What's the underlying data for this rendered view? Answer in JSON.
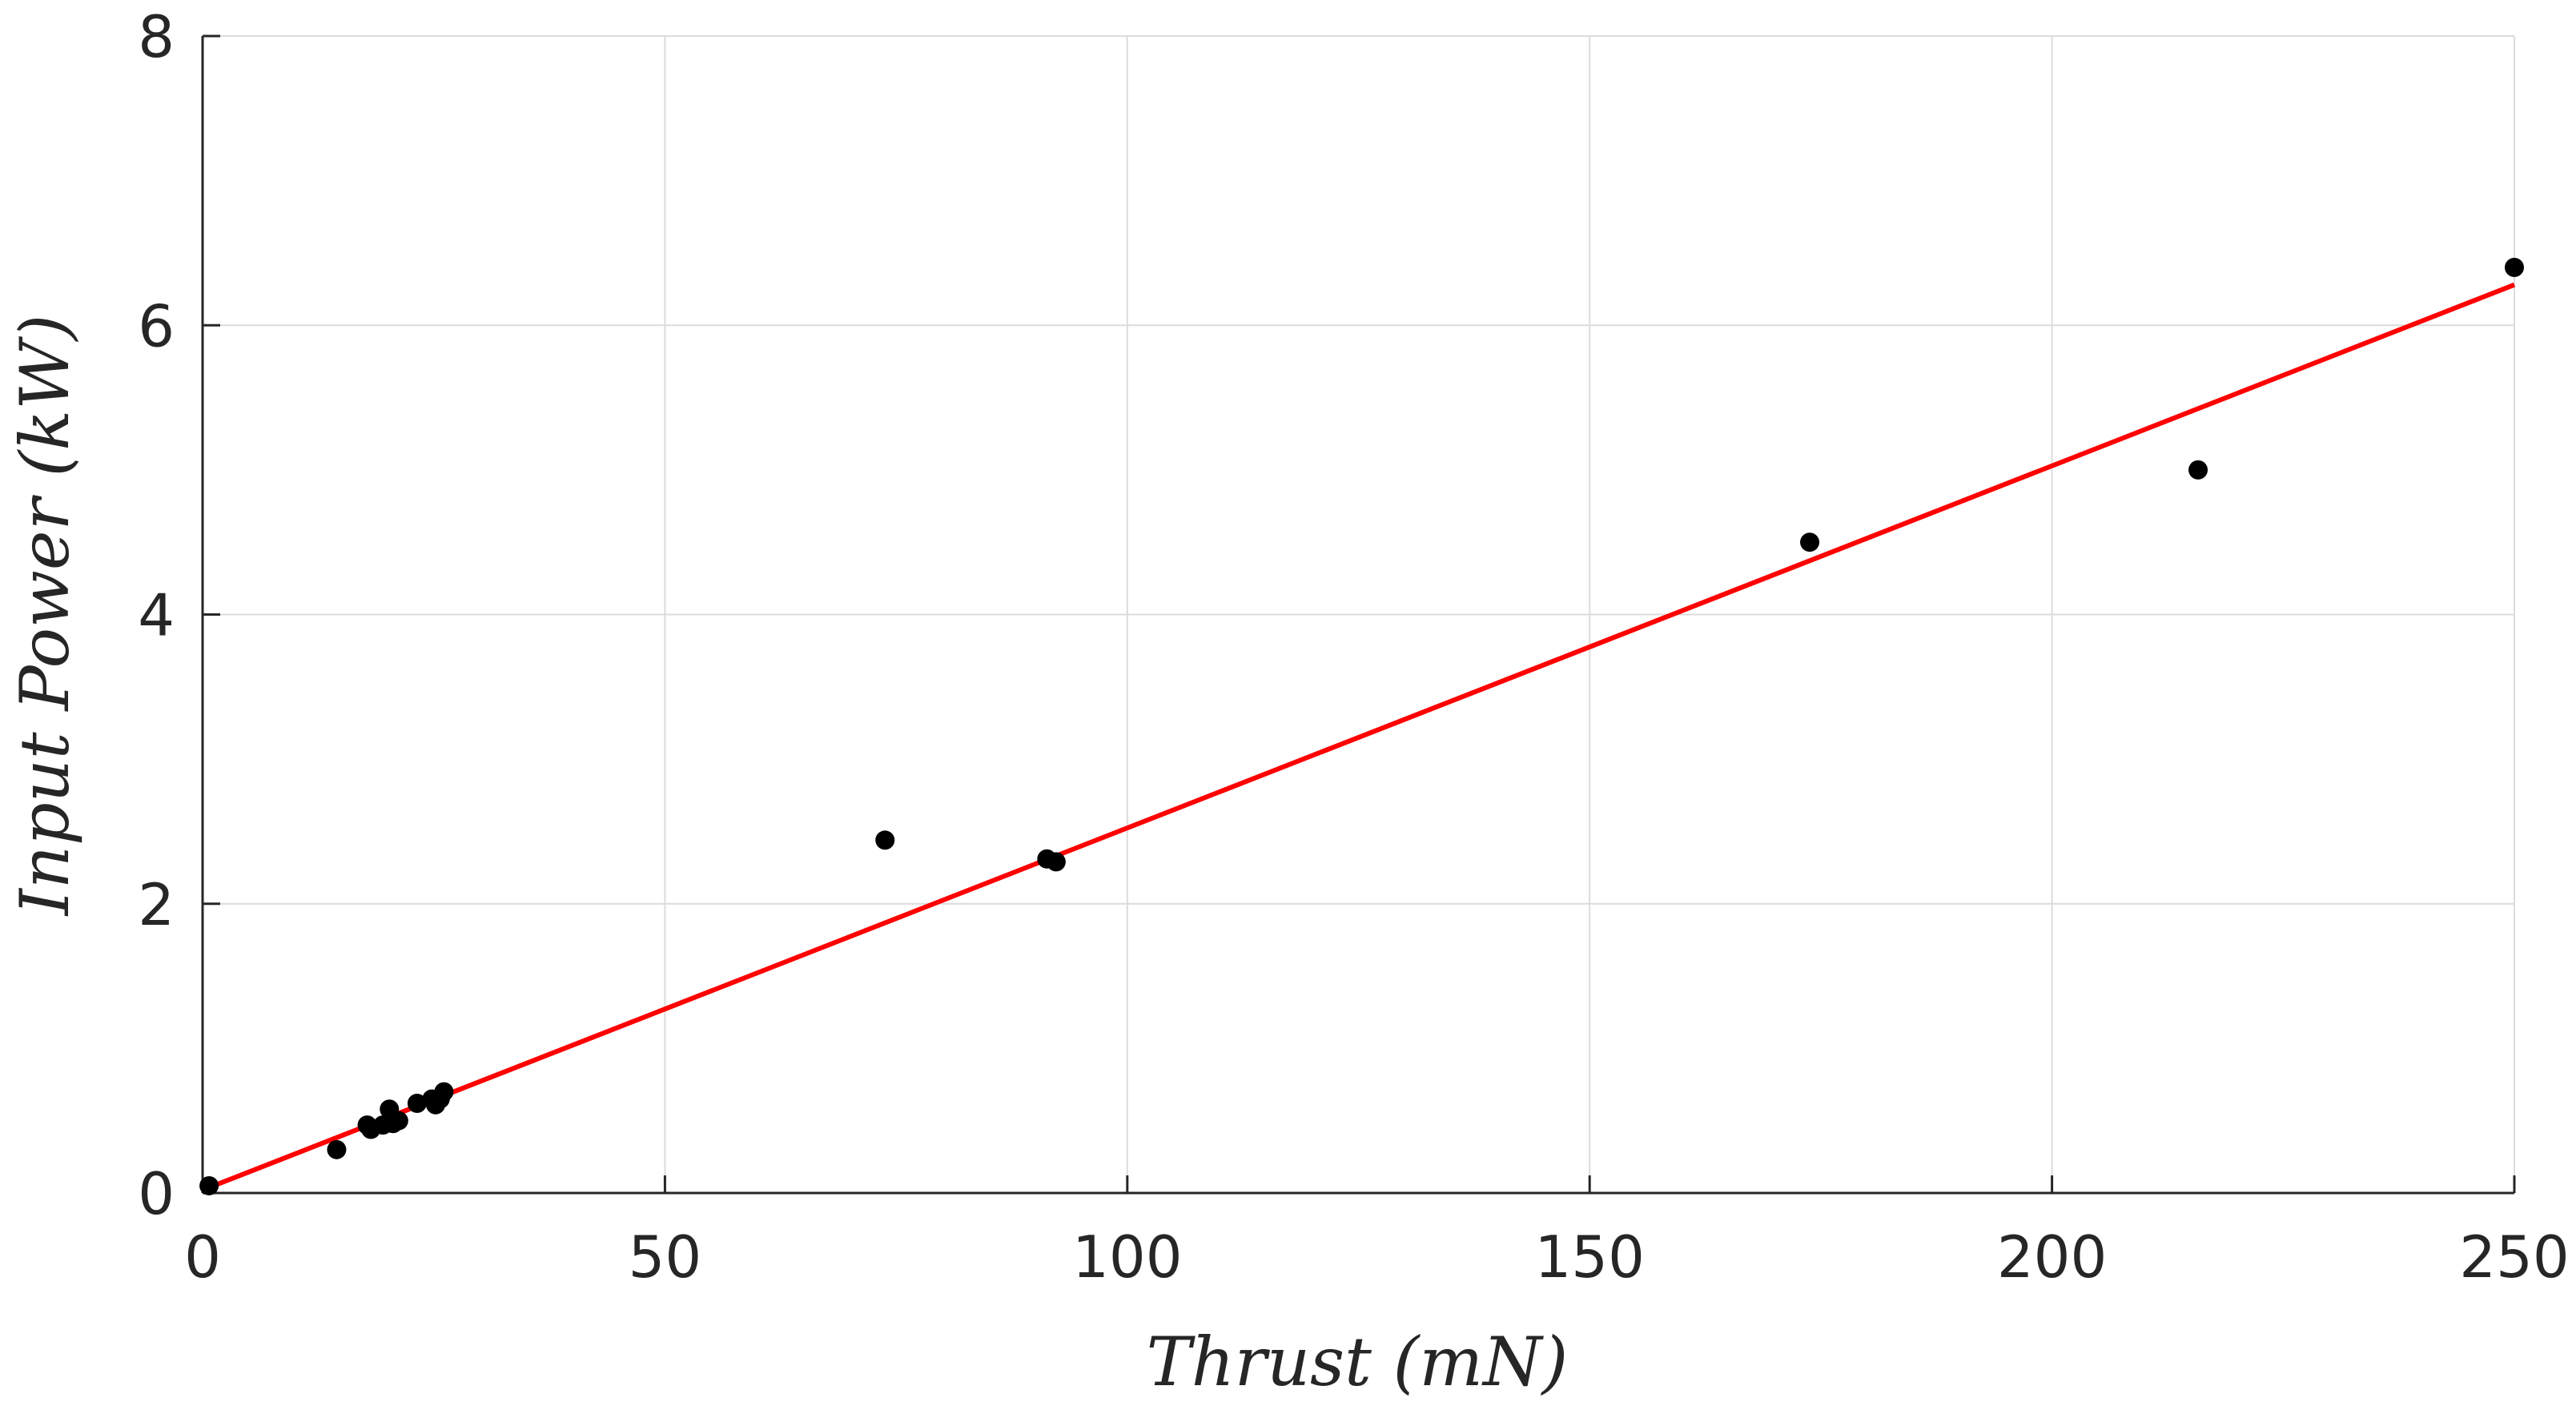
{
  "chart_data": {
    "type": "scatter",
    "title": "",
    "xlabel": "Thrust (mN)",
    "ylabel": "Input Power (kW)",
    "xlim": [
      0,
      250
    ],
    "ylim": [
      0,
      8
    ],
    "xticks": [
      0,
      50,
      100,
      150,
      200,
      250
    ],
    "yticks": [
      0,
      2,
      4,
      6,
      8
    ],
    "grid": true,
    "legend": "none",
    "series": [
      {
        "type": "scatter",
        "color": "#000000",
        "points": [
          [
            0.7,
            0.05
          ],
          [
            14.5,
            0.3
          ],
          [
            17.8,
            0.47
          ],
          [
            18.2,
            0.44
          ],
          [
            19.5,
            0.47
          ],
          [
            20.2,
            0.58
          ],
          [
            20.6,
            0.48
          ],
          [
            21.2,
            0.5
          ],
          [
            23.2,
            0.62
          ],
          [
            24.8,
            0.65
          ],
          [
            25.2,
            0.61
          ],
          [
            25.7,
            0.65
          ],
          [
            26.1,
            0.7
          ],
          [
            73.8,
            2.44
          ],
          [
            91.3,
            2.31
          ],
          [
            92.3,
            2.29
          ],
          [
            173.8,
            4.5
          ],
          [
            215.8,
            5.0
          ],
          [
            250.0,
            6.4
          ]
        ]
      },
      {
        "type": "line",
        "color": "#ff0000",
        "x": [
          0,
          250
        ],
        "y": [
          0.02,
          6.28
        ]
      }
    ]
  }
}
